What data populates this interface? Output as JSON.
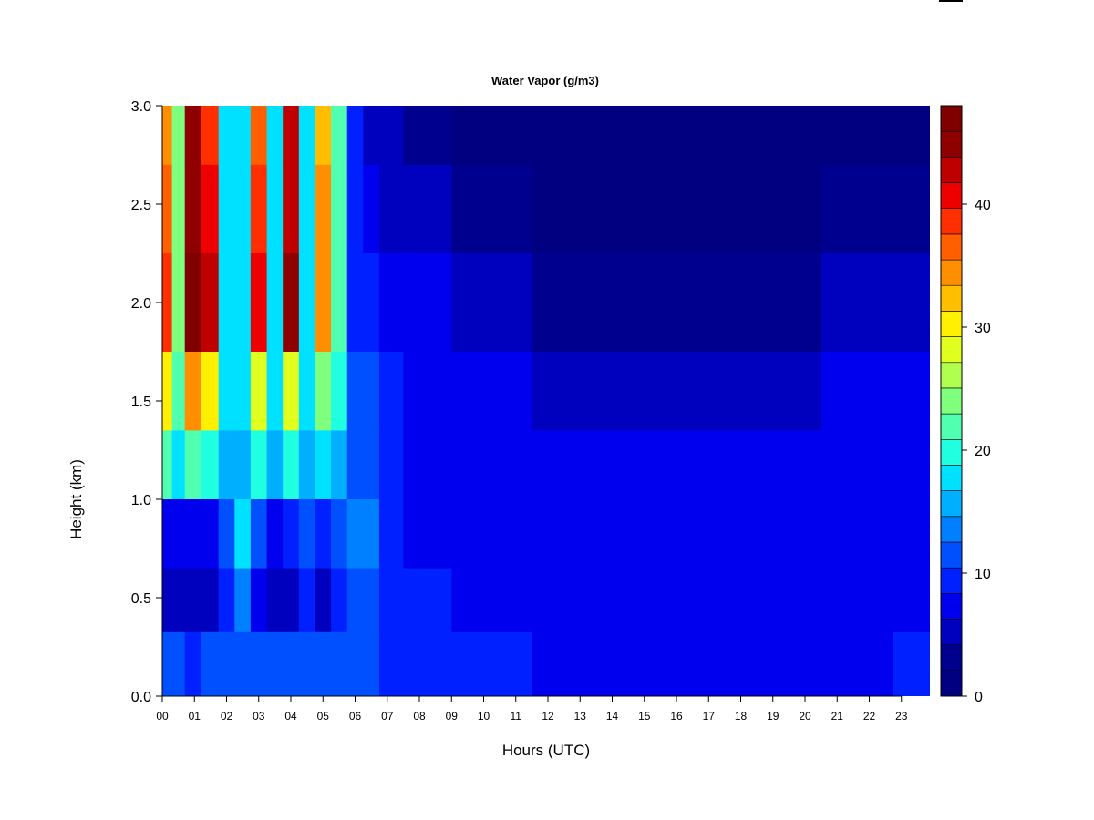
{
  "chart_data": {
    "type": "heatmap",
    "title": "Water Vapor (g/m3)",
    "xlabel": "Hours (UTC)",
    "ylabel": "Height (km)",
    "x_ticks": [
      "00",
      "01",
      "02",
      "03",
      "04",
      "05",
      "06",
      "07",
      "08",
      "09",
      "10",
      "11",
      "12",
      "13",
      "14",
      "15",
      "16",
      "17",
      "18",
      "19",
      "20",
      "21",
      "22",
      "23"
    ],
    "xlim": [
      0,
      23.9
    ],
    "y_ticks": [
      "0.0",
      "0.5",
      "1.0",
      "1.5",
      "2.0",
      "2.5",
      "3.0"
    ],
    "ylim": [
      0,
      3.0
    ],
    "colorbar": {
      "ticks": [
        "0",
        "10",
        "20",
        "30",
        "40"
      ],
      "range": [
        0,
        48
      ],
      "levels": 20,
      "colors": [
        "#000080",
        "#00008f",
        "#0000bf",
        "#0000ef",
        "#0020ff",
        "#0050ff",
        "#0080ff",
        "#00b0ff",
        "#00e0ff",
        "#20ffdf",
        "#50ffaf",
        "#80ff7f",
        "#b0ff4f",
        "#e0ff1f",
        "#ffef00",
        "#ffbf00",
        "#ff8f00",
        "#ff5f00",
        "#ff2f00",
        "#ef0000",
        "#bf0000",
        "#8f0000",
        "#800000"
      ]
    },
    "values": {
      "heights_km": [
        2.9,
        2.5,
        2.0,
        1.5,
        1.2,
        0.8,
        0.5,
        0.15
      ],
      "columns": [
        {
          "hour": 0.1,
          "v": [
            36,
            38,
            41,
            32,
            22,
            8,
            6,
            11
          ]
        },
        {
          "hour": 0.5,
          "v": [
            24,
            24,
            26,
            22,
            18,
            8,
            6,
            11
          ]
        },
        {
          "hour": 0.9,
          "v": [
            46,
            47,
            48,
            36,
            22,
            7,
            5,
            10
          ]
        },
        {
          "hour": 1.5,
          "v": [
            40,
            42,
            44,
            31,
            21,
            8,
            6,
            11
          ]
        },
        {
          "hour": 2.0,
          "v": [
            18,
            18,
            18,
            18,
            16,
            12,
            10,
            12
          ]
        },
        {
          "hour": 2.5,
          "v": [
            18,
            18,
            18,
            18,
            16,
            18,
            14,
            12
          ]
        },
        {
          "hour": 3.0,
          "v": [
            38,
            40,
            42,
            29,
            20,
            11,
            8,
            12
          ]
        },
        {
          "hour": 3.5,
          "v": [
            18,
            18,
            18,
            18,
            16,
            8,
            6,
            11
          ]
        },
        {
          "hour": 4.0,
          "v": [
            44,
            45,
            46,
            30,
            20,
            9,
            6,
            11
          ]
        },
        {
          "hour": 4.5,
          "v": [
            18,
            18,
            18,
            18,
            16,
            13,
            10,
            12
          ]
        },
        {
          "hour": 5.0,
          "v": [
            33,
            35,
            37,
            26,
            19,
            9,
            6,
            11
          ]
        },
        {
          "hour": 5.5,
          "v": [
            22,
            22,
            22,
            20,
            16,
            12,
            9,
            11
          ]
        },
        {
          "hour": 6.0,
          "v": [
            9,
            9,
            10,
            11,
            12,
            15,
            13,
            12
          ]
        },
        {
          "hour": 6.5,
          "v": [
            5,
            8,
            10,
            12,
            13,
            14,
            13,
            11
          ]
        },
        {
          "hour": 7.0,
          "v": [
            5,
            6,
            8,
            9,
            9,
            9,
            10,
            10
          ]
        },
        {
          "hour": 8.0,
          "v": [
            3,
            5,
            7,
            8,
            8,
            8,
            9,
            10
          ]
        },
        {
          "hour": 10.0,
          "v": [
            1,
            3,
            6,
            7,
            8,
            8,
            8,
            9
          ]
        },
        {
          "hour": 13.0,
          "v": [
            1,
            2,
            4,
            6,
            7,
            8,
            8,
            8
          ]
        },
        {
          "hour": 16.0,
          "v": [
            1,
            1,
            3,
            6,
            7,
            7,
            8,
            8
          ]
        },
        {
          "hour": 19.0,
          "v": [
            1,
            2,
            4,
            6,
            7,
            7,
            8,
            8
          ]
        },
        {
          "hour": 22.0,
          "v": [
            2,
            3,
            5,
            7,
            7,
            7,
            7,
            8
          ]
        },
        {
          "hour": 23.5,
          "v": [
            1,
            3,
            5,
            7,
            7,
            7,
            8,
            9
          ]
        }
      ]
    }
  }
}
